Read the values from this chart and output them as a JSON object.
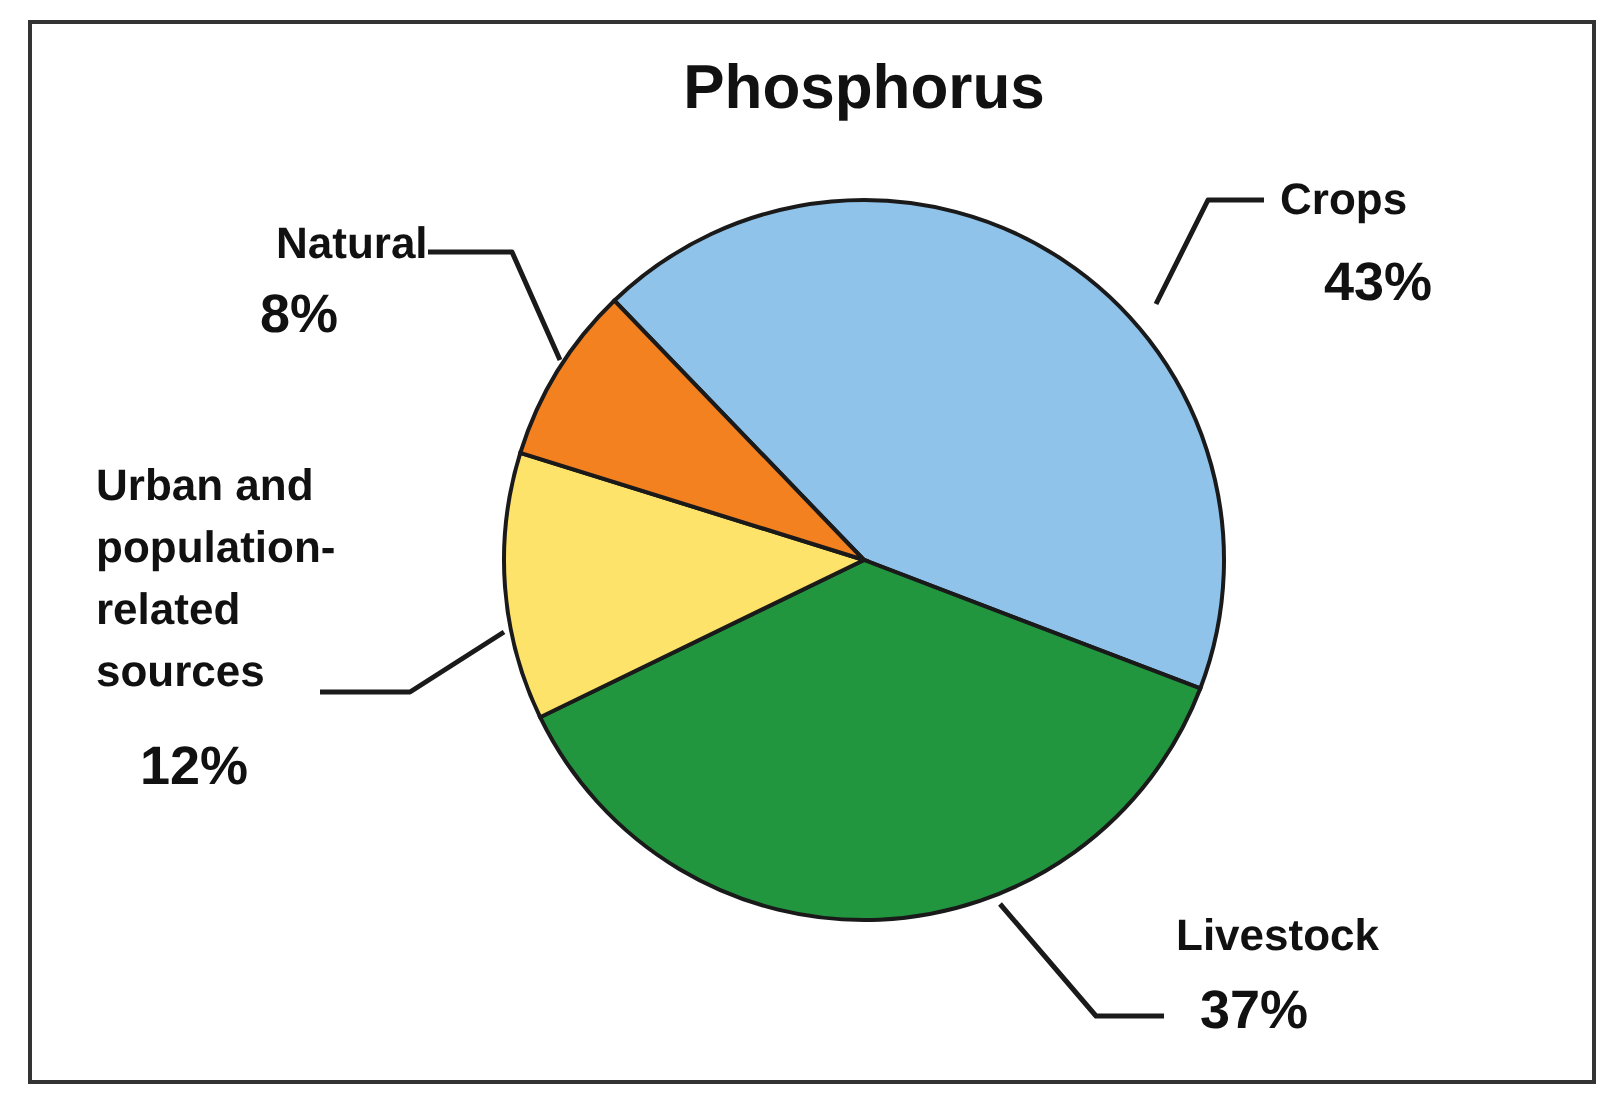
{
  "chart_data": {
    "type": "pie",
    "title": "Phosphorus",
    "categories": [
      "Crops",
      "Livestock",
      "Urban and population-related sources",
      "Natural"
    ],
    "values": [
      43,
      37,
      12,
      8
    ],
    "value_labels": [
      "43%",
      "37%",
      "12%",
      "8%"
    ],
    "colors": [
      "#8fc3ea",
      "#22963f",
      "#fde36a",
      "#f38120"
    ]
  }
}
